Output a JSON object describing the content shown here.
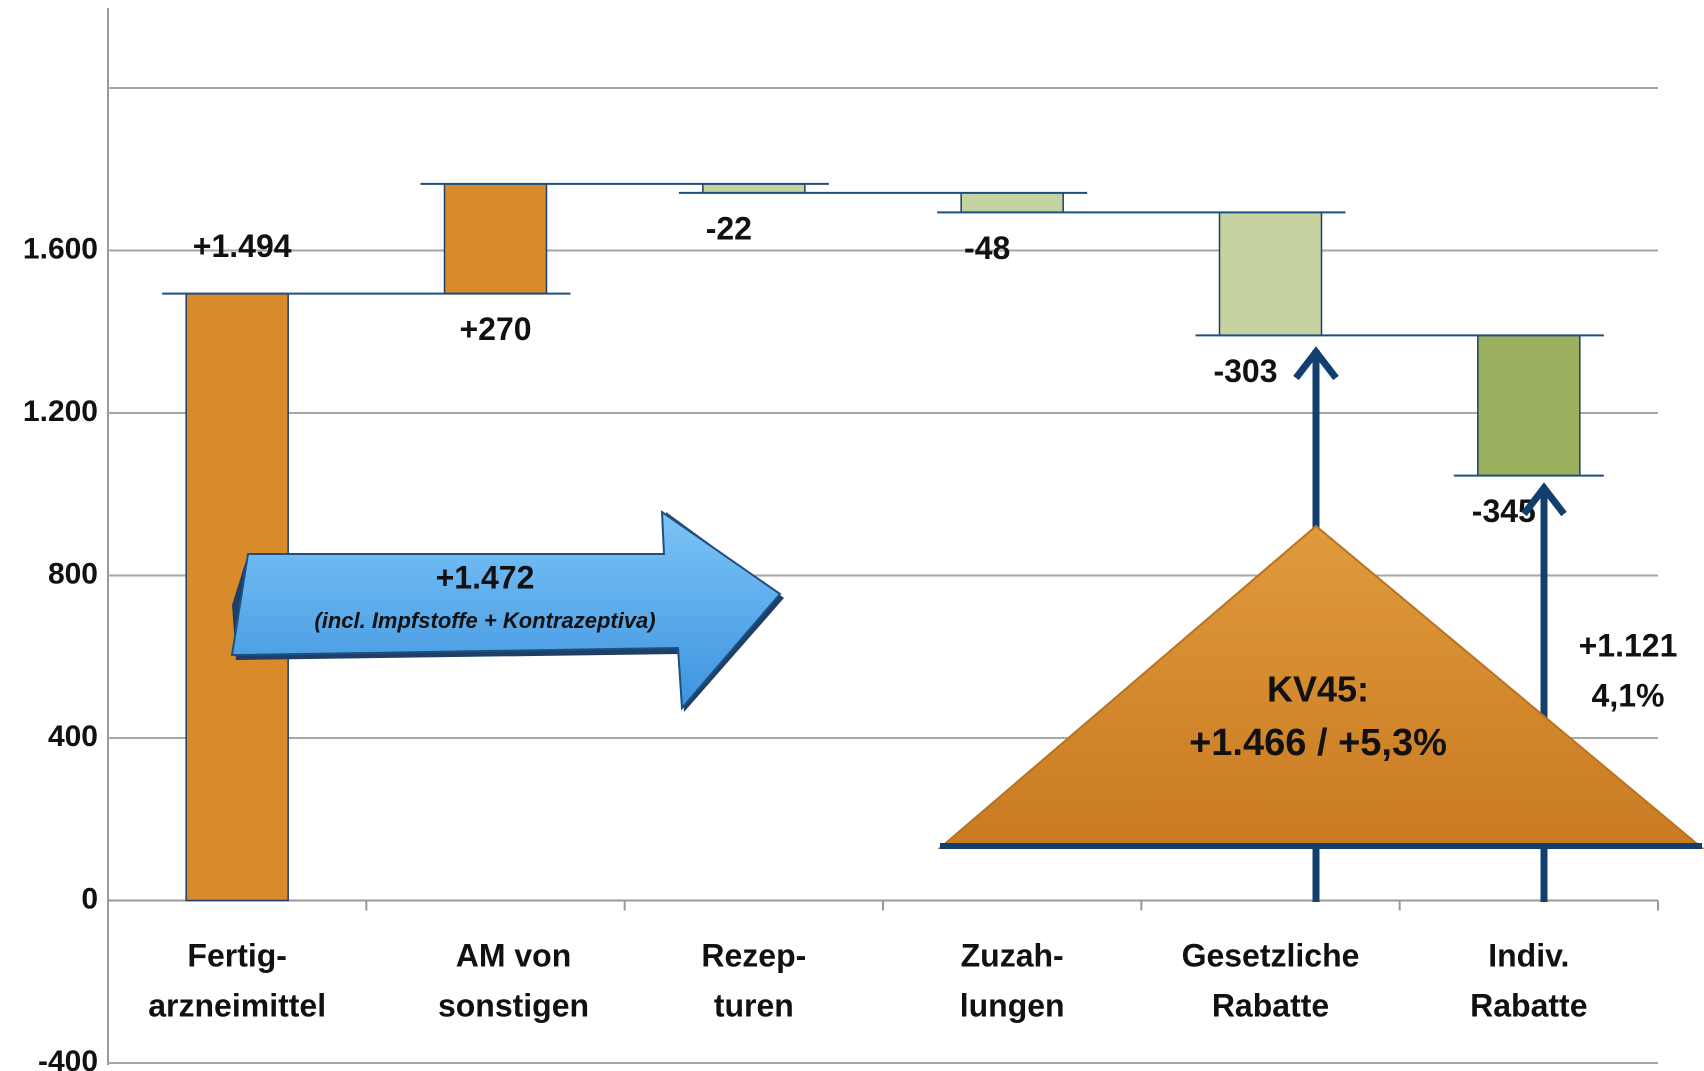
{
  "chart_data": {
    "type": "waterfall",
    "categories": [
      [
        "Fertig-",
        "arzneimittel"
      ],
      [
        "AM von",
        "sonstigen"
      ],
      [
        "Rezep-",
        "turen"
      ],
      [
        "Zuzah-",
        "lungen"
      ],
      [
        "Gesetzliche",
        "Rabatte"
      ],
      [
        "Indiv.",
        "Rabatte"
      ]
    ],
    "values": [
      1494,
      270,
      -22,
      -48,
      -303,
      -345
    ],
    "value_labels": [
      "+1.494",
      "+270",
      "-22",
      "-48",
      "-303",
      "-345"
    ],
    "colors": [
      "#d98a2b",
      "#d98a2b",
      "#c4d3a0",
      "#c4d3a0",
      "#c4d3a0",
      "#9bb05f"
    ],
    "ylim": [
      -400,
      2000
    ],
    "yticks": [
      {
        "value": -400,
        "label": "-400"
      },
      0,
      400,
      800,
      {
        "value": 1200,
        "label": "1.200"
      },
      {
        "value": 1600,
        "label": "1.600"
      }
    ],
    "grid": true,
    "annotations": {
      "arrow": [
        "+1.472",
        "(incl. Impfstoffe + Kontrazeptiva)"
      ],
      "triangle": [
        "KV45:",
        "+1.466 / +5,3%"
      ],
      "side": [
        "+1.121",
        "4,1%"
      ]
    }
  }
}
